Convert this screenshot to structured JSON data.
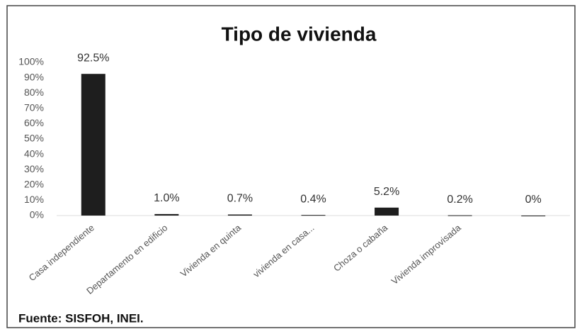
{
  "chart_data": {
    "type": "bar",
    "title": "Tipo de vivienda",
    "categories": [
      "Casa independiente",
      "Departamento en edificio",
      "Vivienda en quinta",
      "vivienda en casa...",
      "Choza o cabaña",
      "Vivienda improvisada",
      null
    ],
    "values": [
      92.5,
      1.0,
      0.7,
      0.4,
      5.2,
      0.2,
      0
    ],
    "value_labels": [
      "92.5%",
      "1.0%",
      "0.7%",
      "0.4%",
      "5.2%",
      "0.2%",
      "0%"
    ],
    "color": "#1e1e1e",
    "ylim": [
      0,
      100
    ],
    "yticks": [
      {
        "value": 0,
        "label": "0%"
      },
      {
        "value": 10,
        "label": "10%"
      },
      {
        "value": 20,
        "label": "20%"
      },
      {
        "value": 30,
        "label": "30%"
      },
      {
        "value": 40,
        "label": "40%"
      },
      {
        "value": 50,
        "label": "50%"
      },
      {
        "value": 60,
        "label": "60%"
      },
      {
        "value": 70,
        "label": "70%"
      },
      {
        "value": 80,
        "label": "80%"
      },
      {
        "value": 90,
        "label": "90%"
      },
      {
        "value": 100,
        "label": "100%"
      }
    ],
    "source": "Fuente: SISFOH, INEI."
  }
}
